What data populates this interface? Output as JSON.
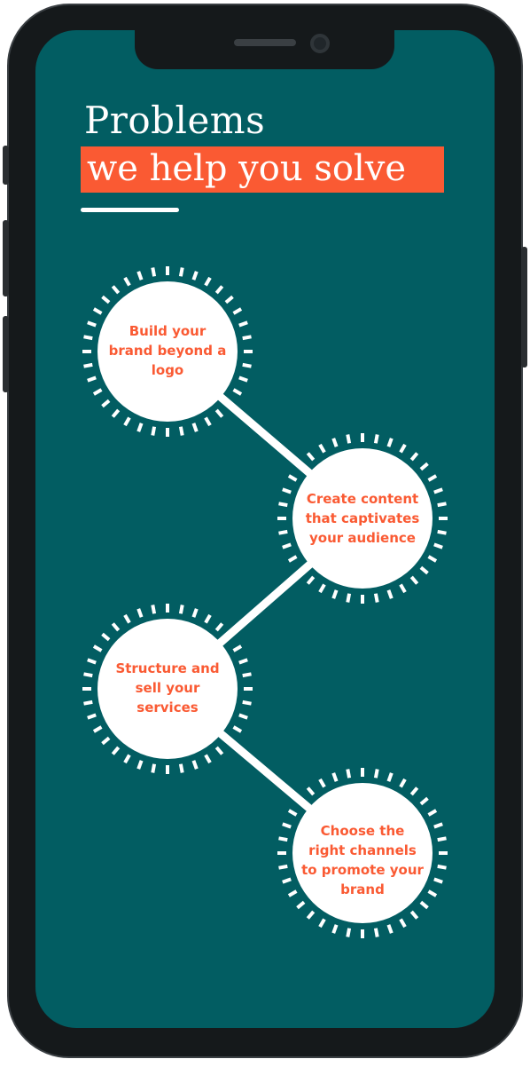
{
  "header": {
    "title_line1": "Problems",
    "title_line2": "we help you solve"
  },
  "steps": [
    {
      "label": "Build your brand beyond a logo"
    },
    {
      "label": "Create content that captivates your audience"
    },
    {
      "label": "Structure and sell your services"
    },
    {
      "label": "Choose the right channels to promote your brand"
    }
  ],
  "colors": {
    "background": "#025d62",
    "accent": "#fa5a33",
    "circle": "#ffffff",
    "phone_frame": "#15191b"
  }
}
